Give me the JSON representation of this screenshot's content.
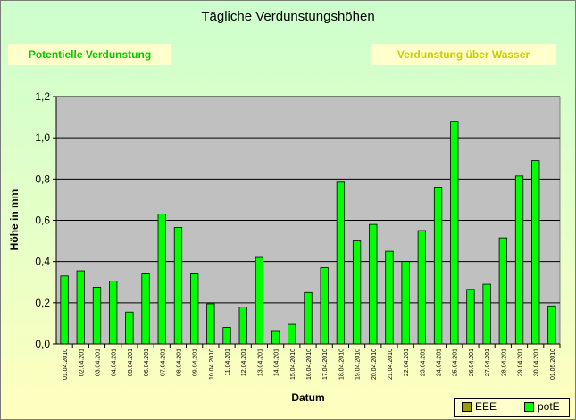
{
  "chart_data": {
    "type": "bar",
    "title": "Tägliche Verdunstungshöhen",
    "xlabel": "Datum",
    "ylabel": "Höhe in mm",
    "ylim": [
      0,
      1.2
    ],
    "yticks": [
      "0,0",
      "0,2",
      "0,4",
      "0,6",
      "0,8",
      "1,0",
      "1,2"
    ],
    "grid": true,
    "legend_position": "bottom-right",
    "categories": [
      "01.04.2010",
      "02.04.201",
      "03.04.201",
      "04.04.201",
      "05.04.201",
      "06.04.201",
      "07.04.201",
      "08.04.201",
      "09.04.201",
      "10.04.2010",
      "11.04.201",
      "12.04.201",
      "13.04.201",
      "14.04.201",
      "15.04.2010",
      "16.04.2010",
      "17.04.2010",
      "18.04.2010",
      "19.04.2010",
      "20.04.2010",
      "21.04.2010",
      "22.04.201",
      "23.04.201",
      "24.04.201",
      "25.04.201",
      "26.04.201",
      "27.04.201",
      "28.04.201",
      "29.04.201",
      "30.04.201",
      "01.05.2010"
    ],
    "series": [
      {
        "name": "EEE",
        "color": "#999900",
        "values": [
          0,
          0,
          0,
          0,
          0,
          0,
          0,
          0,
          0,
          0,
          0,
          0,
          0,
          0,
          0,
          0,
          0,
          0,
          0,
          0,
          0,
          0,
          0,
          0,
          0,
          0,
          0,
          0,
          0,
          0,
          0
        ]
      },
      {
        "name": "potE",
        "color": "#00ff00",
        "values": [
          0.33,
          0.355,
          0.275,
          0.305,
          0.155,
          0.34,
          0.63,
          0.565,
          0.34,
          0.195,
          0.08,
          0.18,
          0.42,
          0.065,
          0.095,
          0.25,
          0.37,
          0.785,
          0.5,
          0.58,
          0.45,
          0.4,
          0.55,
          0.76,
          1.08,
          0.265,
          0.29,
          0.515,
          0.815,
          0.89,
          0.185
        ]
      }
    ]
  },
  "labels": {
    "left_box": "Potentielle Verdunstung",
    "right_box": "Verdunstung über Wasser"
  }
}
